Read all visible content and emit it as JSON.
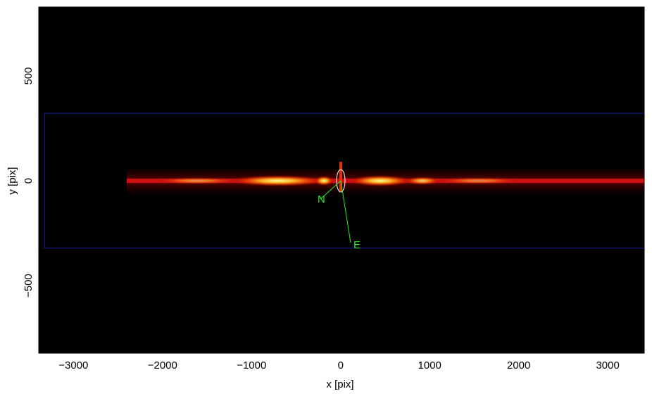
{
  "chart_data": {
    "type": "image",
    "xlabel": "x [pix]",
    "ylabel": "y [pix]",
    "xlim": [
      -3390,
      3410
    ],
    "ylim": [
      -822,
      829
    ],
    "xticks": [
      {
        "value": -3000,
        "label": "−3000"
      },
      {
        "value": -2000,
        "label": "−2000"
      },
      {
        "value": -1000,
        "label": "−1000"
      },
      0,
      1000,
      2000,
      3000
    ],
    "yticks": [
      {
        "value": -500,
        "label": "−500"
      },
      0,
      500
    ],
    "regions": [
      {
        "xlim": [
          -3325,
          3500
        ],
        "ylim": [
          -320,
          322
        ],
        "color": "#1a1aa8"
      }
    ],
    "annotations": [
      "N",
      "E"
    ],
    "annotation_color": "#22ee22"
  }
}
